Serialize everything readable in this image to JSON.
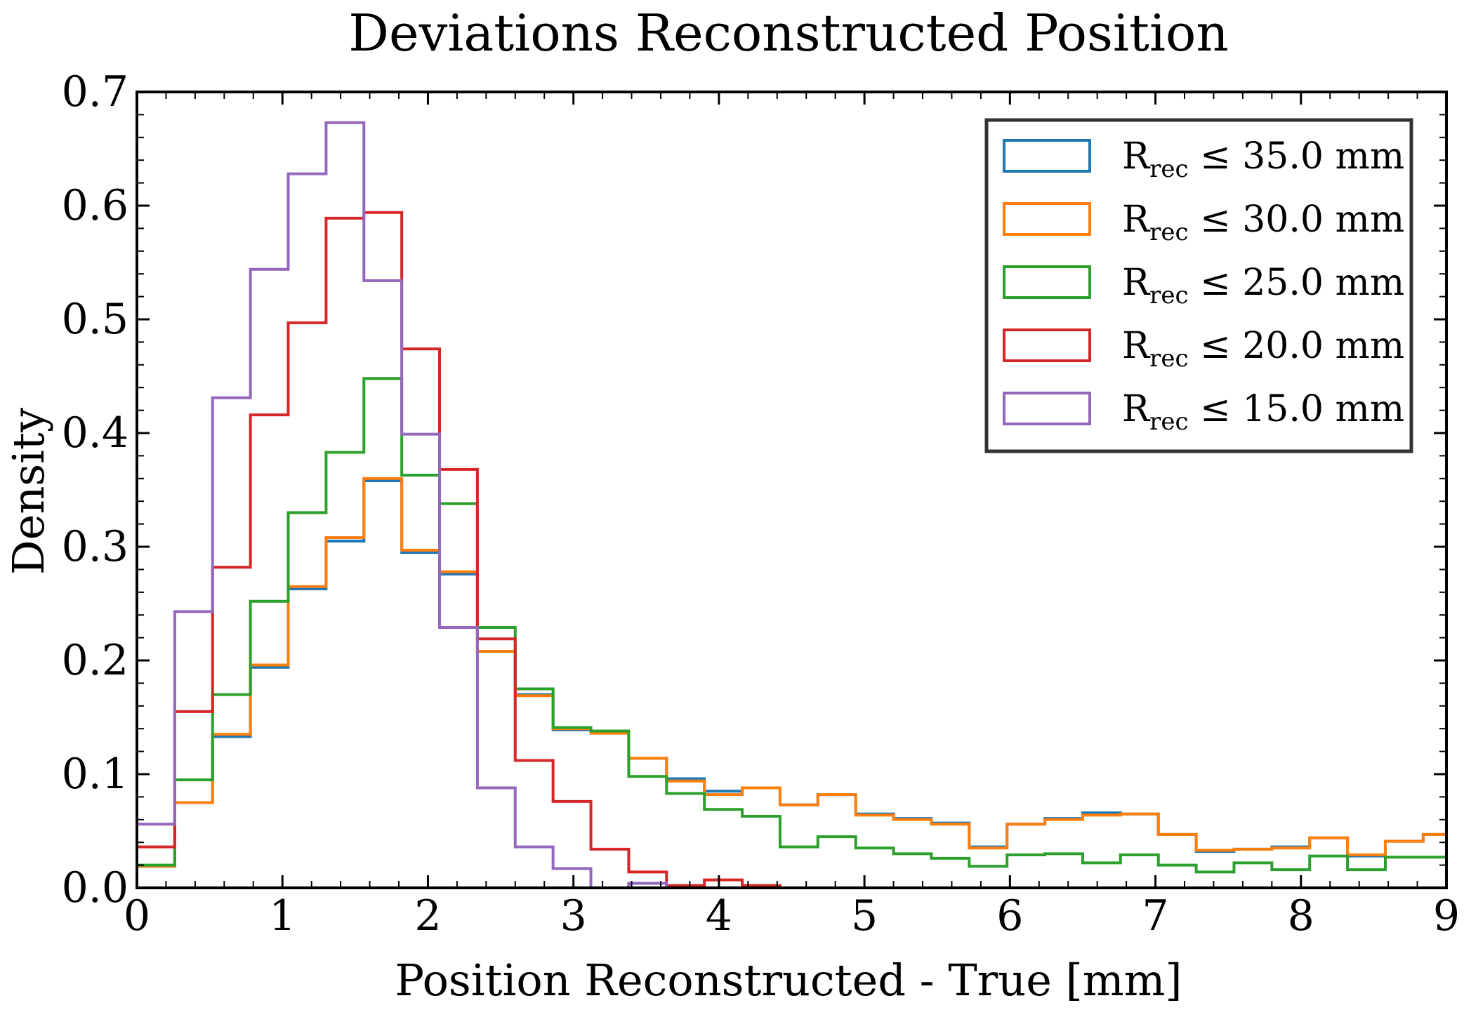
{
  "chart_data": {
    "type": "histogram",
    "title": "Deviations Reconstructed Position",
    "xlabel": "Position Reconstructed - True [mm]",
    "ylabel": "Density",
    "xlim": [
      0,
      9
    ],
    "ylim": [
      0,
      0.7
    ],
    "xticks": [
      0,
      1,
      2,
      3,
      4,
      5,
      6,
      7,
      8,
      9
    ],
    "yticks": [
      0.0,
      0.1,
      0.2,
      0.3,
      0.4,
      0.5,
      0.6,
      0.7
    ],
    "xtick_labels": [
      "0",
      "1",
      "2",
      "3",
      "4",
      "5",
      "6",
      "7",
      "8",
      "9"
    ],
    "ytick_labels": [
      "0.0",
      "0.1",
      "0.2",
      "0.3",
      "0.4",
      "0.5",
      "0.6",
      "0.7"
    ],
    "grid": false,
    "legend_position": "top-right",
    "bin_edges": [
      0,
      0.26,
      0.52,
      0.78,
      1.04,
      1.3,
      1.56,
      1.82,
      2.08,
      2.34,
      2.6,
      2.86,
      3.12,
      3.38,
      3.64,
      3.9,
      4.16,
      4.42,
      4.68,
      4.94,
      5.2,
      5.46,
      5.72,
      5.98,
      6.24,
      6.5,
      6.76,
      7.02,
      7.28,
      7.54,
      7.8,
      8.06,
      8.32,
      8.58,
      8.84,
      9.1
    ],
    "series": [
      {
        "name_main": "R",
        "name_sub": "rec",
        "name_rest": " ≤ 35.0 mm",
        "color": "#1f77b4",
        "values": [
          0.019,
          0.075,
          0.133,
          0.194,
          0.263,
          0.305,
          0.358,
          0.295,
          0.276,
          0.208,
          0.17,
          0.139,
          0.137,
          0.114,
          0.096,
          0.085,
          0.088,
          0.073,
          0.082,
          0.065,
          0.061,
          0.057,
          0.036,
          0.056,
          0.061,
          0.066,
          0.065,
          0.047,
          0.032,
          0.034,
          0.036,
          0.044,
          0.028,
          0.041,
          0.047
        ]
      },
      {
        "name_main": "R",
        "name_sub": "rec",
        "name_rest": " ≤ 30.0 mm",
        "color": "#ff7f0e",
        "values": [
          0.019,
          0.075,
          0.135,
          0.196,
          0.265,
          0.308,
          0.36,
          0.297,
          0.278,
          0.208,
          0.169,
          0.14,
          0.136,
          0.114,
          0.094,
          0.082,
          0.088,
          0.073,
          0.082,
          0.064,
          0.06,
          0.056,
          0.035,
          0.056,
          0.06,
          0.064,
          0.065,
          0.047,
          0.033,
          0.034,
          0.035,
          0.044,
          0.029,
          0.041,
          0.047
        ]
      },
      {
        "name_main": "R",
        "name_sub": "rec",
        "name_rest": " ≤ 25.0 mm",
        "color": "#2ca02c",
        "values": [
          0.02,
          0.095,
          0.17,
          0.252,
          0.33,
          0.383,
          0.448,
          0.363,
          0.338,
          0.229,
          0.175,
          0.141,
          0.138,
          0.098,
          0.083,
          0.069,
          0.063,
          0.036,
          0.045,
          0.035,
          0.03,
          0.026,
          0.019,
          0.029,
          0.03,
          0.022,
          0.029,
          0.02,
          0.014,
          0.022,
          0.016,
          0.028,
          0.016,
          0.027,
          0.027
        ]
      },
      {
        "name_main": "R",
        "name_sub": "rec",
        "name_rest": " ≤ 20.0 mm",
        "color": "#d62728",
        "values": [
          0.036,
          0.155,
          0.282,
          0.416,
          0.497,
          0.589,
          0.594,
          0.474,
          0.368,
          0.219,
          0.112,
          0.076,
          0.034,
          0.014,
          0.002,
          0.007,
          0.002
        ]
      },
      {
        "name_main": "R",
        "name_sub": "rec",
        "name_rest": " ≤ 15.0 mm",
        "color": "#9467bd",
        "values": [
          0.056,
          0.243,
          0.431,
          0.544,
          0.628,
          0.673,
          0.534,
          0.399,
          0.229,
          0.088,
          0.036,
          0.017,
          0.0,
          0.004,
          0.0
        ]
      }
    ]
  }
}
